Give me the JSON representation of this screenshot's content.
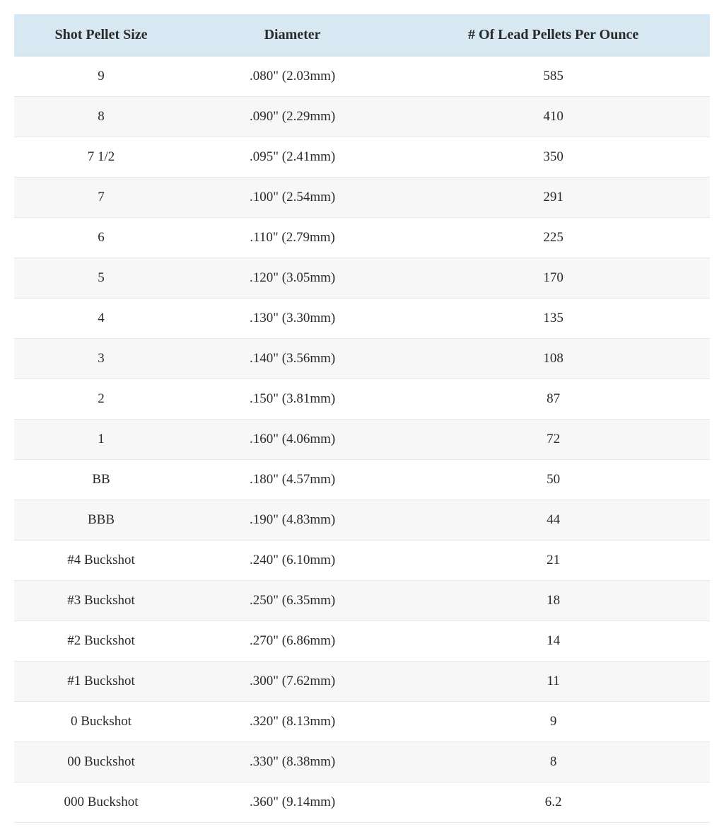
{
  "table": {
    "header_bg_color": "#d8e8f2",
    "row_odd_bg_color": "#ffffff",
    "row_even_bg_color": "#f7f7f7",
    "border_color": "#e8e8e8",
    "text_color": "#2a2a2a",
    "header_fontsize": 20,
    "cell_fontsize": 19,
    "columns": [
      {
        "key": "size",
        "label": "Shot Pellet Size",
        "width": "25%"
      },
      {
        "key": "diameter",
        "label": "Diameter",
        "width": "30%"
      },
      {
        "key": "pellets",
        "label": "# Of Lead Pellets Per Ounce",
        "width": "45%"
      }
    ],
    "rows": [
      {
        "size": "9",
        "diameter": ".080\" (2.03mm)",
        "pellets": "585"
      },
      {
        "size": "8",
        "diameter": ".090\" (2.29mm)",
        "pellets": "410"
      },
      {
        "size": "7 1/2",
        "diameter": ".095\" (2.41mm)",
        "pellets": "350"
      },
      {
        "size": "7",
        "diameter": ".100\" (2.54mm)",
        "pellets": "291"
      },
      {
        "size": "6",
        "diameter": ".110\" (2.79mm)",
        "pellets": "225"
      },
      {
        "size": "5",
        "diameter": ".120\" (3.05mm)",
        "pellets": "170"
      },
      {
        "size": "4",
        "diameter": ".130\" (3.30mm)",
        "pellets": "135"
      },
      {
        "size": "3",
        "diameter": ".140\" (3.56mm)",
        "pellets": "108"
      },
      {
        "size": "2",
        "diameter": ".150\" (3.81mm)",
        "pellets": "87"
      },
      {
        "size": "1",
        "diameter": ".160\" (4.06mm)",
        "pellets": "72"
      },
      {
        "size": "BB",
        "diameter": ".180\" (4.57mm)",
        "pellets": "50"
      },
      {
        "size": "BBB",
        "diameter": ".190\" (4.83mm)",
        "pellets": "44"
      },
      {
        "size": "#4 Buckshot",
        "diameter": ".240\" (6.10mm)",
        "pellets": "21"
      },
      {
        "size": "#3 Buckshot",
        "diameter": ".250\" (6.35mm)",
        "pellets": "18"
      },
      {
        "size": "#2 Buckshot",
        "diameter": ".270\" (6.86mm)",
        "pellets": "14"
      },
      {
        "size": "#1 Buckshot",
        "diameter": ".300\" (7.62mm)",
        "pellets": "11"
      },
      {
        "size": "0 Buckshot",
        "diameter": ".320\" (8.13mm)",
        "pellets": "9"
      },
      {
        "size": "00 Buckshot",
        "diameter": ".330\" (8.38mm)",
        "pellets": "8"
      },
      {
        "size": "000 Buckshot",
        "diameter": ".360\" (9.14mm)",
        "pellets": "6.2"
      }
    ]
  }
}
